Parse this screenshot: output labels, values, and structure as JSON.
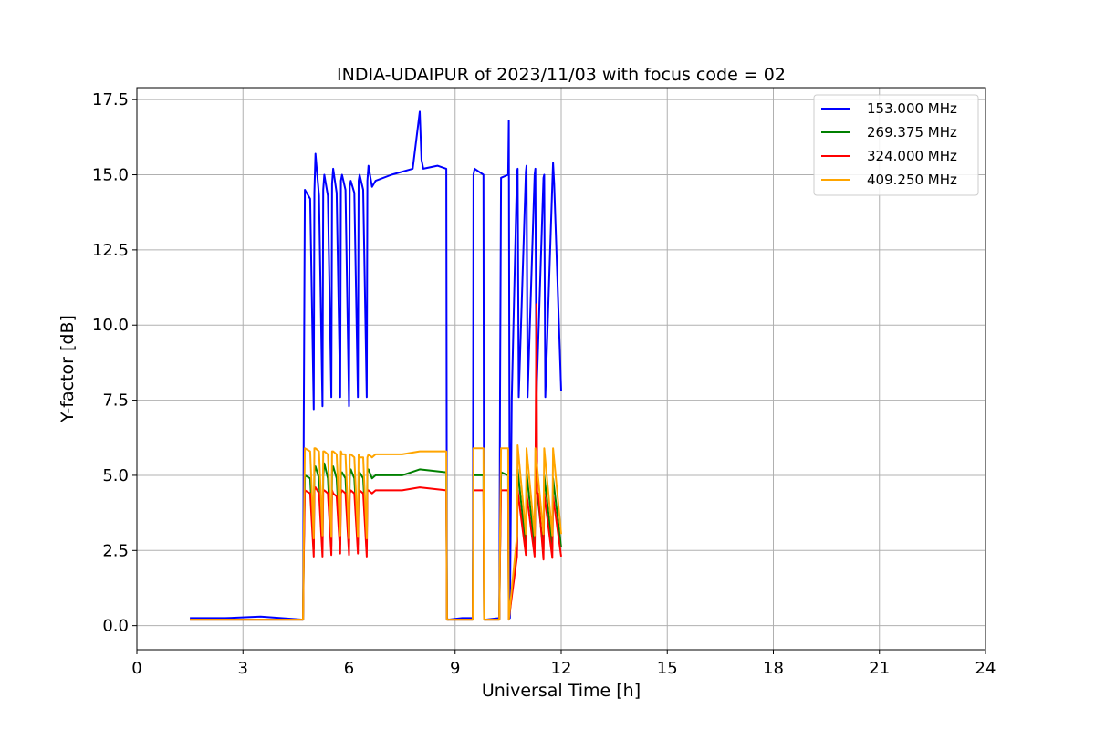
{
  "chart_data": {
    "type": "line",
    "title": "INDIA-UDAIPUR of 2023/11/03 with focus code = 02",
    "xlabel": "Universal Time [h]",
    "ylabel": "Y-factor [dB]",
    "xlim": [
      0,
      24
    ],
    "ylim": [
      -0.8,
      17.9
    ],
    "xticks": [
      0,
      3,
      6,
      9,
      12,
      15,
      18,
      21,
      24
    ],
    "xtick_labels": [
      "0",
      "3",
      "6",
      "9",
      "12",
      "15",
      "18",
      "21",
      "24"
    ],
    "yticks": [
      0.0,
      2.5,
      5.0,
      7.5,
      10.0,
      12.5,
      15.0,
      17.5
    ],
    "ytick_labels": [
      "0.0",
      "2.5",
      "5.0",
      "7.5",
      "10.0",
      "12.5",
      "15.0",
      "17.5"
    ],
    "grid": true,
    "legend_position": "top-right",
    "series": [
      {
        "name": "153.000 MHz",
        "color": "#0000ff",
        "x": [
          1.5,
          2.5,
          3.5,
          4.7,
          4.72,
          4.75,
          4.9,
          5.0,
          5.02,
          5.05,
          5.15,
          5.25,
          5.27,
          5.3,
          5.4,
          5.5,
          5.52,
          5.55,
          5.65,
          5.75,
          5.77,
          5.8,
          5.9,
          6.0,
          6.02,
          6.05,
          6.15,
          6.25,
          6.27,
          6.3,
          6.4,
          6.5,
          6.52,
          6.55,
          6.65,
          6.75,
          7.2,
          7.8,
          8.0,
          8.05,
          8.1,
          8.5,
          8.75,
          8.77,
          8.8,
          9.2,
          9.5,
          9.52,
          9.55,
          9.8,
          9.82,
          9.85,
          10.25,
          10.27,
          10.3,
          10.5,
          10.52,
          10.55,
          10.6,
          10.75,
          10.77,
          10.8,
          11.0,
          11.02,
          11.05,
          11.25,
          11.27,
          11.3,
          11.5,
          11.52,
          11.55,
          11.75,
          11.77,
          11.8,
          12.0
        ],
        "y": [
          0.25,
          0.25,
          0.3,
          0.2,
          7.0,
          14.5,
          14.2,
          7.2,
          14.4,
          15.7,
          14.3,
          7.3,
          14.5,
          15.0,
          14.3,
          7.6,
          14.7,
          15.2,
          14.4,
          7.6,
          14.8,
          15.0,
          14.5,
          7.3,
          14.6,
          14.8,
          14.4,
          7.6,
          14.8,
          15.0,
          14.5,
          7.6,
          14.8,
          15.3,
          14.6,
          14.8,
          15.0,
          15.2,
          17.1,
          15.5,
          15.2,
          15.3,
          15.2,
          0.25,
          0.2,
          0.25,
          0.25,
          15.0,
          15.2,
          15.0,
          0.25,
          0.2,
          0.25,
          7.7,
          14.9,
          15.0,
          16.8,
          0.25,
          7.5,
          15.1,
          15.2,
          7.6,
          15.1,
          15.3,
          7.6,
          15.0,
          15.2,
          7.6,
          14.9,
          15.0,
          7.6,
          14.7,
          15.4,
          14.7,
          7.8
        ]
      },
      {
        "name": "269.375 MHz",
        "color": "#008000",
        "x": [
          1.5,
          3.0,
          4.7,
          4.72,
          4.75,
          4.9,
          5.0,
          5.02,
          5.05,
          5.15,
          5.25,
          5.27,
          5.3,
          5.4,
          5.5,
          5.52,
          5.55,
          5.65,
          5.75,
          5.77,
          5.8,
          5.9,
          6.0,
          6.02,
          6.05,
          6.15,
          6.25,
          6.27,
          6.3,
          6.4,
          6.5,
          6.52,
          6.55,
          6.65,
          6.75,
          7.5,
          8.0,
          8.75,
          8.77,
          9.2,
          9.5,
          9.52,
          9.8,
          9.82,
          10.25,
          10.27,
          10.3,
          10.5,
          10.52,
          10.75,
          10.77,
          11.0,
          11.02,
          11.25,
          11.27,
          11.5,
          11.52,
          11.75,
          11.77,
          12.0
        ],
        "y": [
          0.2,
          0.2,
          0.2,
          2.5,
          5.0,
          4.9,
          2.55,
          5.1,
          5.3,
          4.9,
          2.6,
          5.0,
          5.4,
          4.9,
          2.65,
          5.1,
          5.3,
          4.9,
          2.7,
          5.0,
          5.1,
          4.9,
          2.6,
          5.0,
          5.2,
          4.9,
          2.7,
          5.0,
          5.1,
          4.9,
          2.7,
          5.1,
          5.2,
          4.9,
          5.0,
          5.0,
          5.2,
          5.1,
          0.2,
          0.2,
          0.2,
          5.0,
          5.0,
          0.2,
          0.2,
          2.5,
          5.1,
          5.0,
          0.2,
          2.5,
          5.2,
          2.6,
          5.1,
          2.6,
          5.0,
          2.5,
          5.0,
          2.6,
          4.9,
          2.6
        ]
      },
      {
        "name": "324.000 MHz",
        "color": "#ff0000",
        "x": [
          1.5,
          3.0,
          4.7,
          4.72,
          4.75,
          4.9,
          5.0,
          5.02,
          5.05,
          5.15,
          5.25,
          5.27,
          5.3,
          5.4,
          5.5,
          5.52,
          5.55,
          5.65,
          5.75,
          5.77,
          5.8,
          5.9,
          6.0,
          6.02,
          6.05,
          6.15,
          6.25,
          6.27,
          6.3,
          6.4,
          6.5,
          6.52,
          6.55,
          6.65,
          6.75,
          7.5,
          8.0,
          8.75,
          8.77,
          9.2,
          9.5,
          9.52,
          9.8,
          9.82,
          10.25,
          10.27,
          10.3,
          10.5,
          10.52,
          10.75,
          10.77,
          11.0,
          11.02,
          11.25,
          11.27,
          11.3,
          11.32,
          11.35,
          11.5,
          11.52,
          11.75,
          11.77,
          12.0
        ],
        "y": [
          0.2,
          0.2,
          0.2,
          2.25,
          4.5,
          4.4,
          2.3,
          4.5,
          4.6,
          4.4,
          2.3,
          4.5,
          4.5,
          4.4,
          2.35,
          4.5,
          4.4,
          4.3,
          2.4,
          4.4,
          4.5,
          4.4,
          2.35,
          4.4,
          4.5,
          4.4,
          2.4,
          4.5,
          4.5,
          4.4,
          2.3,
          4.5,
          4.5,
          4.4,
          4.5,
          4.5,
          4.6,
          4.5,
          0.2,
          0.2,
          0.2,
          4.5,
          4.5,
          0.2,
          0.2,
          2.3,
          4.5,
          4.5,
          0.2,
          2.3,
          4.5,
          2.35,
          4.4,
          2.3,
          4.5,
          10.7,
          4.4,
          4.4,
          2.2,
          4.4,
          2.25,
          4.3,
          2.3
        ]
      },
      {
        "name": "409.250 MHz",
        "color": "#ffa500",
        "x": [
          1.5,
          3.0,
          4.7,
          4.72,
          4.75,
          4.9,
          5.0,
          5.02,
          5.05,
          5.15,
          5.25,
          5.27,
          5.3,
          5.4,
          5.5,
          5.52,
          5.55,
          5.65,
          5.75,
          5.77,
          5.8,
          5.9,
          6.0,
          6.02,
          6.05,
          6.15,
          6.25,
          6.27,
          6.3,
          6.4,
          6.5,
          6.52,
          6.55,
          6.65,
          6.75,
          7.5,
          8.0,
          8.75,
          8.77,
          9.2,
          9.5,
          9.52,
          9.8,
          9.82,
          10.25,
          10.27,
          10.3,
          10.5,
          10.52,
          10.75,
          10.77,
          11.0,
          11.02,
          11.25,
          11.27,
          11.5,
          11.52,
          11.75,
          11.77,
          12.0
        ],
        "y": [
          0.2,
          0.2,
          0.2,
          3.0,
          5.9,
          5.8,
          2.9,
          5.9,
          5.9,
          5.8,
          3.0,
          5.8,
          5.8,
          5.7,
          2.95,
          5.8,
          5.8,
          5.7,
          3.0,
          5.8,
          5.7,
          5.7,
          2.9,
          5.7,
          5.7,
          5.6,
          2.95,
          5.7,
          5.6,
          5.6,
          2.9,
          5.6,
          5.7,
          5.6,
          5.7,
          5.7,
          5.8,
          5.8,
          0.2,
          0.2,
          0.2,
          5.9,
          5.9,
          0.2,
          0.2,
          3.0,
          5.9,
          5.9,
          0.2,
          3.0,
          6.0,
          3.05,
          5.9,
          3.0,
          5.9,
          3.05,
          5.9,
          3.0,
          5.9,
          3.05
        ]
      }
    ]
  }
}
